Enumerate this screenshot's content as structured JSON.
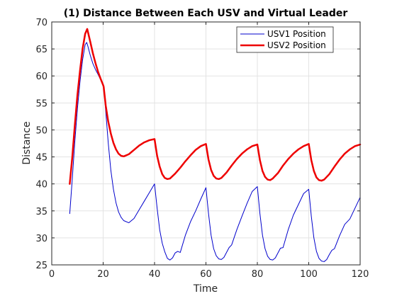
{
  "chart_data": {
    "type": "line",
    "title": "(1) Distance Between Each USV and Virtual Leader",
    "xlabel": "Time",
    "ylabel": "Distance",
    "xlim": [
      0,
      120
    ],
    "ylim": [
      25,
      70
    ],
    "x_ticks": [
      0,
      20,
      40,
      60,
      80,
      100,
      120
    ],
    "y_ticks": [
      25,
      30,
      35,
      40,
      45,
      50,
      55,
      60,
      65,
      70
    ],
    "grid": true,
    "legend_position": "top-right",
    "series": [
      {
        "name": "USV1 Position",
        "color": "#0000cc",
        "line_width": "thin",
        "x": [
          7,
          8,
          9,
          10,
          11,
          12,
          13,
          13.6,
          14,
          15,
          16,
          17,
          18,
          19,
          20,
          20.2,
          21,
          22,
          23,
          24,
          25,
          26,
          27,
          28,
          30,
          32,
          34,
          36,
          38,
          40,
          41,
          42,
          43,
          44,
          45,
          46,
          47,
          48,
          49,
          50,
          52,
          54,
          56,
          58,
          60,
          61,
          62,
          63,
          64,
          65,
          66,
          67,
          68,
          69,
          70,
          72,
          74,
          76,
          78,
          80,
          81,
          82,
          83,
          84,
          85,
          86,
          87,
          88,
          89,
          90,
          92,
          94,
          96,
          98,
          100,
          101,
          102,
          103,
          104,
          105,
          106,
          107,
          108,
          109,
          110,
          112,
          114,
          116,
          118,
          120
        ],
        "y": [
          34.5,
          41,
          48,
          54,
          59,
          63,
          65.8,
          66.2,
          65.6,
          63.8,
          62.3,
          61.2,
          60.3,
          59.3,
          58.3,
          57.9,
          53.5,
          47.5,
          42.5,
          39,
          36.5,
          34.8,
          33.8,
          33.2,
          32.8,
          33.6,
          35.2,
          36.8,
          38.4,
          40,
          35.5,
          31.5,
          29,
          27.4,
          26.2,
          25.9,
          26.3,
          27.2,
          27.5,
          27.3,
          30.5,
          33,
          35,
          37.2,
          39.3,
          34.5,
          30.5,
          28,
          26.7,
          26.1,
          26,
          26.4,
          27.3,
          28.2,
          28.7,
          31.5,
          34,
          36.4,
          38.6,
          39.5,
          34.5,
          30.5,
          28,
          26.6,
          26,
          25.9,
          26.3,
          27.2,
          28.1,
          28.2,
          31.5,
          34.2,
          36.2,
          38.2,
          39,
          34,
          30,
          27.5,
          26.2,
          25.7,
          25.6,
          26,
          26.9,
          27.7,
          28,
          30.4,
          32.5,
          33.5,
          35.5,
          37.5
        ]
      },
      {
        "name": "USV2 Position",
        "color": "#ee0000",
        "line_width": "thick",
        "x": [
          7,
          8,
          9,
          10,
          11,
          12,
          13,
          13.8,
          14,
          15,
          16,
          17,
          18,
          19,
          20,
          20.2,
          21,
          22,
          23,
          24,
          25,
          26,
          27,
          28,
          30,
          32,
          34,
          36,
          38,
          40,
          41,
          42,
          43,
          44,
          45,
          46,
          48,
          50,
          52,
          54,
          56,
          58,
          60,
          61,
          62,
          63,
          64,
          65,
          66,
          68,
          70,
          72,
          74,
          76,
          78,
          80,
          81,
          82,
          83,
          84,
          85,
          86,
          88,
          90,
          92,
          94,
          96,
          98,
          100,
          101,
          102,
          103,
          104,
          105,
          106,
          108,
          110,
          112,
          114,
          116,
          118,
          120
        ],
        "y": [
          40,
          45,
          51,
          56.5,
          61,
          65,
          67.8,
          68.7,
          68.3,
          66.3,
          64.2,
          62.4,
          60.8,
          59.5,
          58.3,
          58,
          54.5,
          51.5,
          49.3,
          47.6,
          46.4,
          45.6,
          45.2,
          45.1,
          45.5,
          46.3,
          47.1,
          47.7,
          48.1,
          48.3,
          45.2,
          43.2,
          41.8,
          41.1,
          40.9,
          41,
          41.9,
          43,
          44.2,
          45.3,
          46.3,
          47,
          47.4,
          44.5,
          42.6,
          41.5,
          41,
          40.9,
          41.1,
          42.1,
          43.4,
          44.6,
          45.6,
          46.4,
          47,
          47.3,
          44.4,
          42.4,
          41.3,
          40.8,
          40.7,
          41,
          42,
          43.4,
          44.6,
          45.6,
          46.4,
          47,
          47.4,
          44.4,
          42.4,
          41.2,
          40.7,
          40.6,
          40.8,
          41.8,
          43.2,
          44.5,
          45.6,
          46.4,
          47,
          47.3
        ]
      }
    ]
  }
}
